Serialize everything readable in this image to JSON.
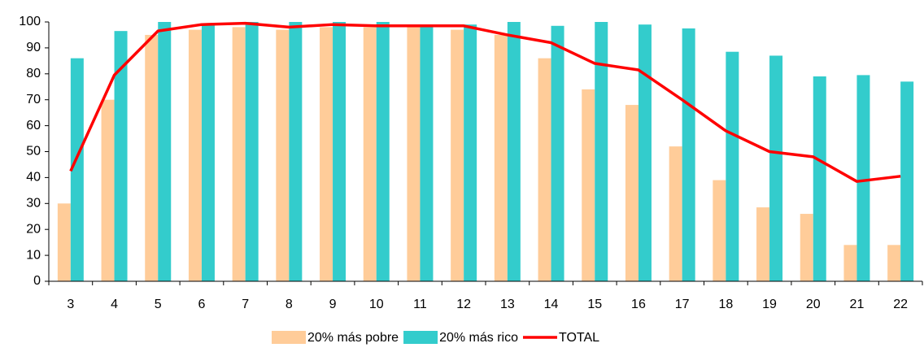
{
  "chart_data": {
    "type": "bar_line",
    "categories": [
      "3",
      "4",
      "5",
      "6",
      "7",
      "8",
      "9",
      "10",
      "11",
      "12",
      "13",
      "14",
      "15",
      "16",
      "17",
      "18",
      "19",
      "20",
      "21",
      "22"
    ],
    "series": [
      {
        "name": "20% más pobre",
        "color": "#ffcc99",
        "kind": "bar",
        "values": [
          30,
          70,
          95,
          97,
          98,
          97,
          98,
          98,
          98,
          97,
          95,
          86,
          74,
          68,
          52,
          39,
          28.5,
          26,
          14,
          14
        ]
      },
      {
        "name": "20% más rico",
        "color": "#33cccc",
        "kind": "bar",
        "values": [
          86,
          96.5,
          100,
          99,
          100,
          100,
          100,
          100,
          98,
          99,
          100,
          98.5,
          100,
          99,
          97.5,
          88.5,
          87,
          79,
          79.5,
          77
        ]
      },
      {
        "name": "TOTAL",
        "color": "#ff0000",
        "kind": "line",
        "values": [
          42.5,
          79.5,
          96.5,
          99,
          99.5,
          98,
          99,
          98.5,
          98.5,
          98.5,
          95,
          92,
          84,
          81.5,
          70,
          58,
          50,
          48,
          38.5,
          40.5
        ]
      }
    ],
    "ylim": [
      0,
      100
    ],
    "yticks": [
      0,
      10,
      20,
      30,
      40,
      50,
      60,
      70,
      80,
      90,
      100
    ],
    "grid": false
  }
}
